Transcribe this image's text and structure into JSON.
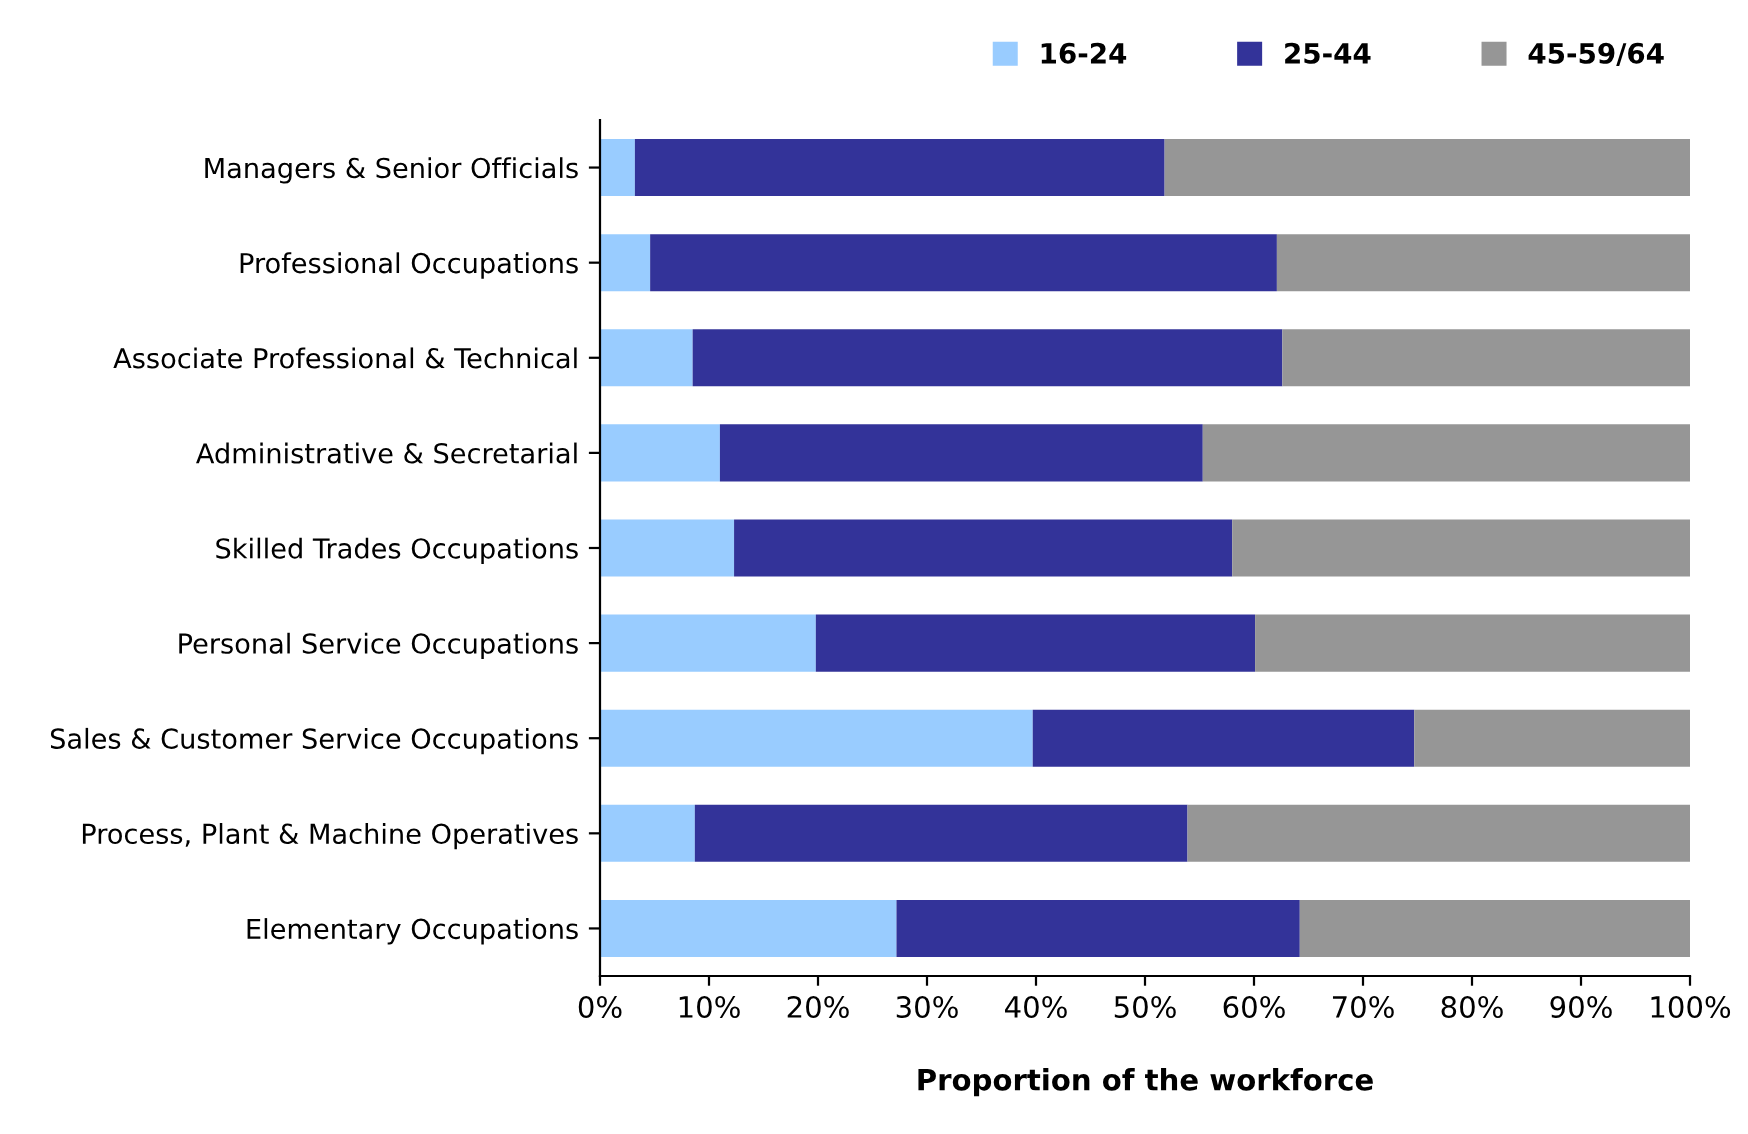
{
  "chart_data": {
    "type": "bar",
    "orientation": "horizontal",
    "stacked": true,
    "categories": [
      "Managers & Senior Officials",
      "Professional Occupations",
      "Associate Professional & Technical",
      "Administrative & Secretarial",
      "Skilled Trades Occupations",
      "Personal Service Occupations",
      "Sales & Customer Service Occupations",
      "Process, Plant & Machine Operatives",
      "Elementary Occupations"
    ],
    "series": [
      {
        "name": "16-24",
        "color": "#99ccff",
        "values": [
          3.2,
          4.6,
          8.5,
          11.0,
          12.3,
          19.8,
          39.7,
          8.7,
          27.2
        ]
      },
      {
        "name": "25-44",
        "color": "#333399",
        "values": [
          48.6,
          57.5,
          54.1,
          44.3,
          45.7,
          40.3,
          35.0,
          45.2,
          37.0
        ]
      },
      {
        "name": "45-59/64",
        "color": "#969696",
        "values": [
          48.2,
          37.9,
          37.4,
          44.7,
          42.0,
          39.9,
          25.3,
          46.1,
          35.8
        ]
      }
    ],
    "xlabel": "Proportion of the workforce",
    "xlim": [
      0,
      100
    ],
    "xticks": [
      {
        "value": 0,
        "label": "0%"
      },
      {
        "value": 10,
        "label": "10%"
      },
      {
        "value": 20,
        "label": "20%"
      },
      {
        "value": 30,
        "label": "30%"
      },
      {
        "value": 40,
        "label": "40%"
      },
      {
        "value": 50,
        "label": "50%"
      },
      {
        "value": 60,
        "label": "60%"
      },
      {
        "value": 70,
        "label": "70%"
      },
      {
        "value": 80,
        "label": "80%"
      },
      {
        "value": 90,
        "label": "90%"
      },
      {
        "value": 100,
        "label": "100%"
      }
    ],
    "grid": false,
    "legend": "top right"
  }
}
